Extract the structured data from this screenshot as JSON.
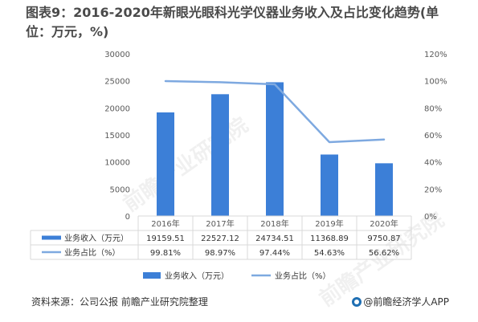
{
  "header": {
    "title": "图表9：2016-2020年新眼光眼科光学仪器业务收入及占比变化趋势(单位：万元，%)"
  },
  "footer": {
    "source": "资料来源：公司公报 前瞻产业研究院整理",
    "brand": "@前瞻经济学人APP"
  },
  "watermark": "前瞻产业研究院",
  "colors": {
    "bar": "#3c7fd7",
    "line": "#7ea9e0",
    "grid": "#d9d9d9",
    "axis_text": "#595959"
  },
  "chart_data": {
    "type": "bar",
    "categories": [
      "2016年",
      "2017年",
      "2018年",
      "2019年",
      "2020年"
    ],
    "series": [
      {
        "name": "业务收入（万元）",
        "type": "bar",
        "axis": "left",
        "values": [
          19159.51,
          22527.12,
          24734.51,
          11368.89,
          9750.87
        ],
        "labels": [
          "19159.51",
          "22527.12",
          "24734.51",
          "11368.89",
          "9750.87"
        ]
      },
      {
        "name": "业务占比（%）",
        "type": "line",
        "axis": "right",
        "values": [
          99.81,
          98.97,
          97.44,
          54.63,
          56.62
        ],
        "labels": [
          "99.81%",
          "98.97%",
          "97.44%",
          "54.63%",
          "56.62%"
        ]
      }
    ],
    "y_left": {
      "range": [
        0,
        30000
      ],
      "ticks": [
        "0",
        "5000",
        "10000",
        "15000",
        "20000",
        "25000",
        "30000"
      ]
    },
    "y_right": {
      "range": [
        0,
        120
      ],
      "ticks": [
        "0%",
        "20%",
        "40%",
        "60%",
        "80%",
        "100%",
        "120%"
      ]
    },
    "legend": [
      {
        "label": "业务收入（万元）",
        "kind": "bar"
      },
      {
        "label": "业务占比（%）",
        "kind": "line"
      }
    ],
    "legend_position": "bottom",
    "data_table": true,
    "grid": false
  }
}
